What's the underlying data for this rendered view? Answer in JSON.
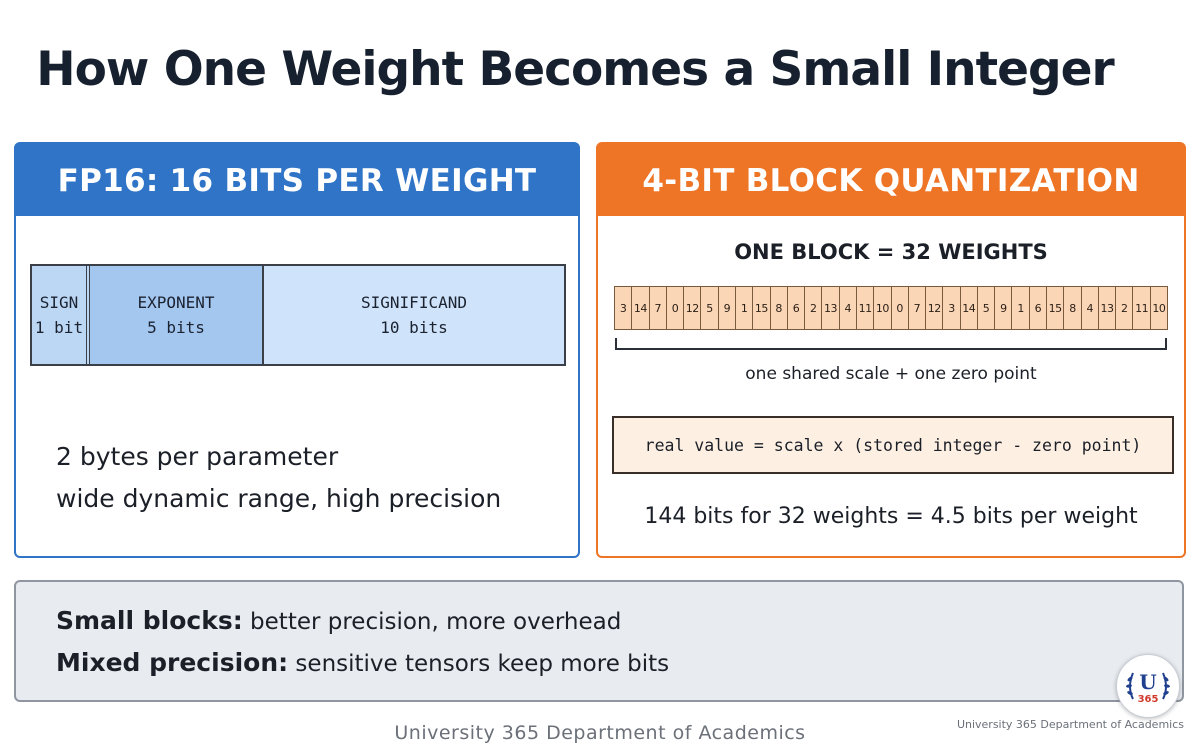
{
  "title": "How One Weight Becomes a Small Integer",
  "left_panel": {
    "header": "FP16: 16 BITS PER WEIGHT",
    "fields": [
      {
        "name": "SIGN",
        "bits": "1 bit"
      },
      {
        "name": "EXPONENT",
        "bits": "5 bits"
      },
      {
        "name": "SIGNIFICAND",
        "bits": "10 bits"
      }
    ],
    "line1": "2 bytes per parameter",
    "line2": "wide dynamic range, high precision"
  },
  "right_panel": {
    "header": "4-BIT BLOCK QUANTIZATION",
    "block_title": "ONE BLOCK = 32 WEIGHTS",
    "values": [
      "3",
      "14",
      "7",
      "0",
      "12",
      "5",
      "9",
      "1",
      "15",
      "8",
      "6",
      "2",
      "13",
      "4",
      "11",
      "10",
      "0",
      "7",
      "12",
      "3",
      "14",
      "5",
      "9",
      "1",
      "6",
      "15",
      "8",
      "4",
      "13",
      "2",
      "11",
      "10"
    ],
    "bracket_label": "one shared scale + one zero point",
    "formula": "real value = scale x (stored integer - zero point)",
    "bits_line": "144 bits for 32 weights = 4.5 bits per weight"
  },
  "note": {
    "line1_bold": "Small blocks:",
    "line1_text": " better precision,  more overhead",
    "line2_bold": "Mixed precision:",
    "line2_text": " sensitive tensors keep more bits"
  },
  "logo": {
    "letter": "U",
    "number": "365",
    "colors": {
      "primary": "#1f3f8f",
      "accent": "#d23a2c"
    }
  },
  "footer": {
    "center": "University 365 Department of Academics",
    "right": "University 365 Department of Academics"
  }
}
